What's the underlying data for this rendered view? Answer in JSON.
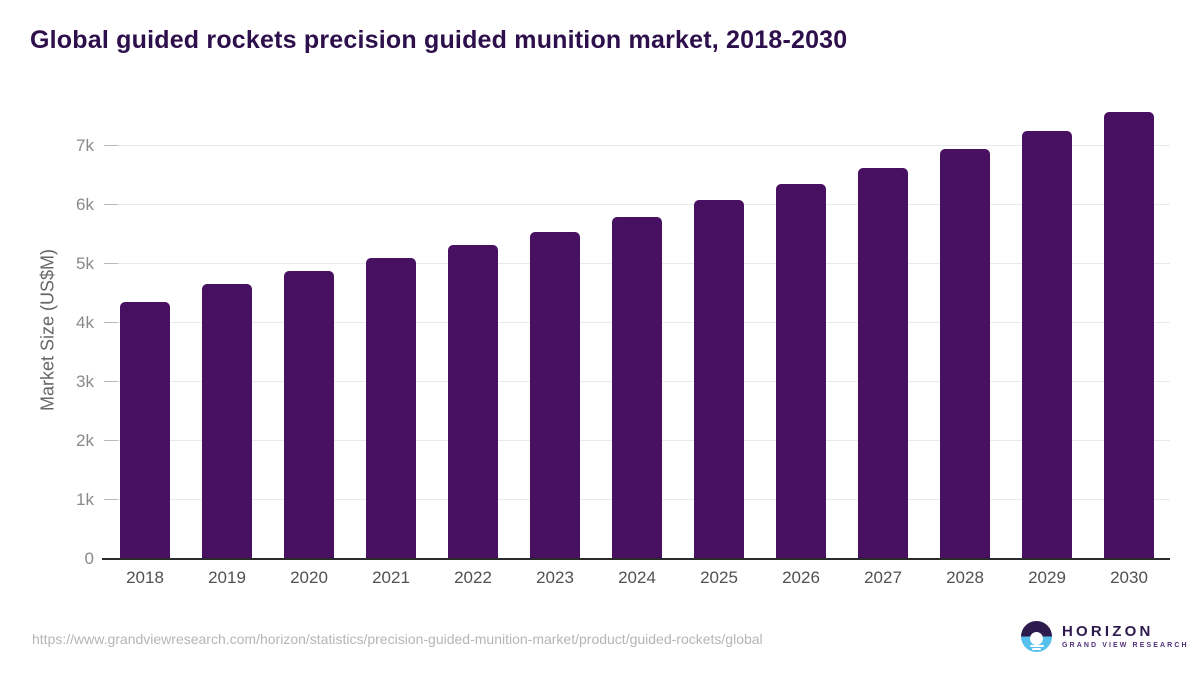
{
  "title": "Global guided rockets precision guided munition market, 2018-2030",
  "chart_data": {
    "type": "bar",
    "title": "Global guided rockets precision guided munition market, 2018-2030",
    "xlabel": "",
    "ylabel": "Market Size (US$M)",
    "categories": [
      "2018",
      "2019",
      "2020",
      "2021",
      "2022",
      "2023",
      "2024",
      "2025",
      "2026",
      "2027",
      "2028",
      "2029",
      "2030"
    ],
    "values": [
      4360,
      4660,
      4880,
      5100,
      5330,
      5550,
      5800,
      6080,
      6350,
      6630,
      6950,
      7260,
      7580
    ],
    "ylim": [
      0,
      7780
    ],
    "yticks": [
      {
        "value": 0,
        "label": "0"
      },
      {
        "value": 1000,
        "label": "1k"
      },
      {
        "value": 2000,
        "label": "2k"
      },
      {
        "value": 3000,
        "label": "3k"
      },
      {
        "value": 4000,
        "label": "4k"
      },
      {
        "value": 5000,
        "label": "5k"
      },
      {
        "value": 6000,
        "label": "6k"
      },
      {
        "value": 7000,
        "label": "7k"
      }
    ],
    "grid": "horizontal",
    "legend": "none",
    "bar_color": "#471060"
  },
  "colors": {
    "title": "#2d0f4b",
    "bar": "#471060",
    "gridline": "#e9e9e9",
    "axis_line": "#2b2b2b",
    "y_tick_label": "#8a8a8a",
    "x_tick_label": "#515151",
    "url": "#b5b5b5",
    "logo_purple": "#2d1b4e",
    "logo_blue": "#56c0ec"
  },
  "footer": {
    "source_url": "https://www.grandviewresearch.com/horizon/statistics/precision-guided-munition-market/product/guided-rockets/global",
    "logo": {
      "title": "HORIZON",
      "subtitle": "GRAND VIEW RESEARCH"
    }
  }
}
